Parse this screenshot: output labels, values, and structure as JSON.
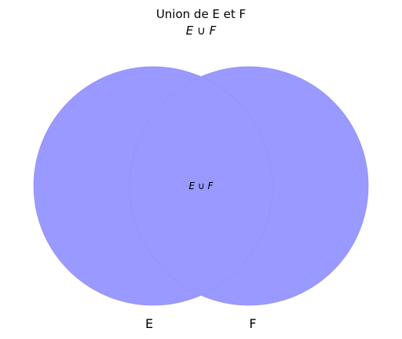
{
  "title": "Union de E et F",
  "subtitle": "E ∪ F",
  "sets": [
    {
      "label": "E",
      "fill": "#9999ff"
    },
    {
      "label": "F",
      "fill": "#9999ff"
    }
  ],
  "union_fill": "#9999ff",
  "union_label": "E ∪ F"
}
